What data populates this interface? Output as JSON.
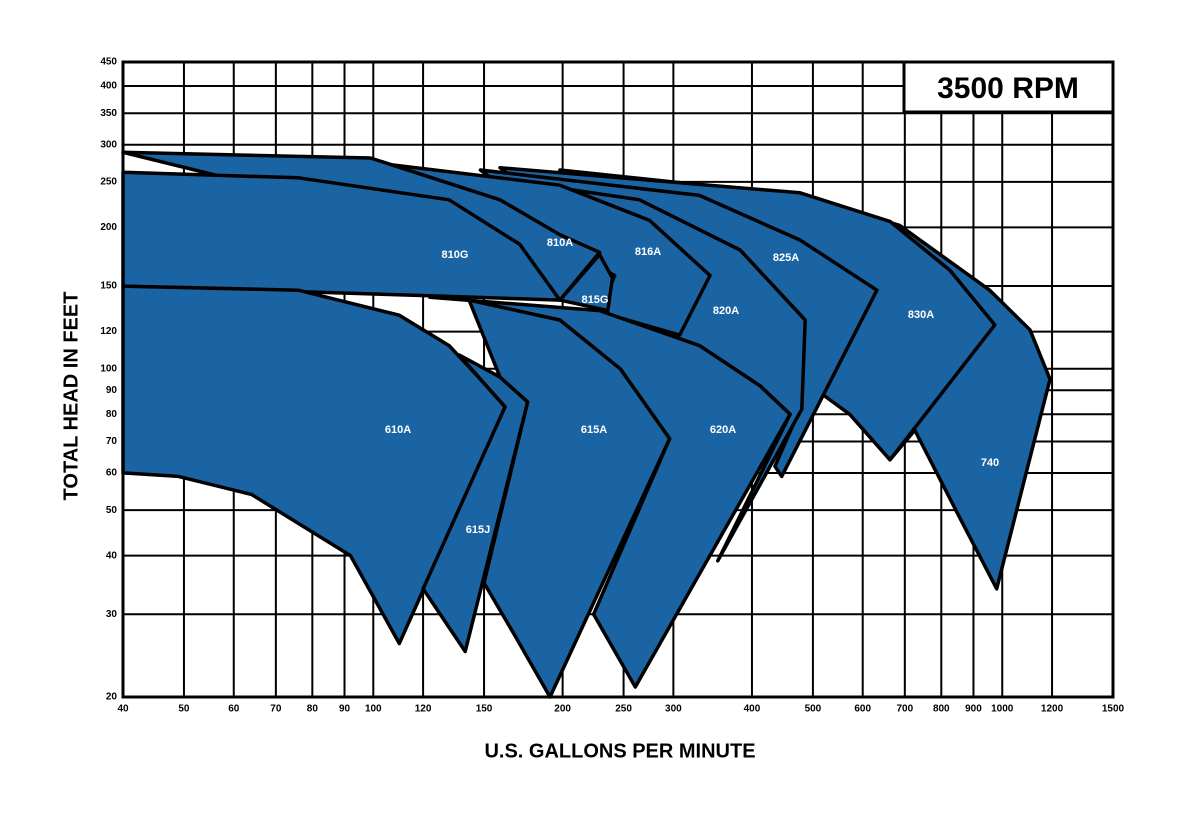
{
  "chart_data": {
    "type": "region",
    "title": "3500 RPM",
    "xlabel": "U.S. GALLONS PER MINUTE",
    "ylabel": "TOTAL HEAD IN FEET",
    "xscale": "log",
    "yscale": "log",
    "grid": true,
    "color": "#1b64a4",
    "xlim": [
      40,
      1500
    ],
    "ylim": [
      20,
      450
    ],
    "xticks": [
      40,
      50,
      60,
      70,
      80,
      90,
      100,
      120,
      150,
      200,
      250,
      300,
      400,
      500,
      600,
      700,
      800,
      900,
      1000,
      1200,
      1500
    ],
    "yticks": [
      20,
      30,
      40,
      50,
      60,
      70,
      80,
      90,
      100,
      120,
      150,
      200,
      250,
      300,
      350,
      400,
      450
    ],
    "regions": [
      {
        "name": "740",
        "gpm": [
          198,
          477,
          687,
          955,
          1107,
          1191,
          980,
          857,
          726,
          663,
          572,
          522,
          477
        ],
        "head": [
          265,
          234,
          202,
          147,
          121,
          95,
          34,
          48,
          74,
          64,
          82,
          89,
          86
        ]
      },
      {
        "name": "830A",
        "gpm": [
          159,
          477,
          663,
          826,
          973,
          663,
          572,
          513,
          477
        ],
        "head": [
          268,
          237,
          206,
          162,
          124,
          64,
          80,
          89,
          88
        ]
      },
      {
        "name": "825A",
        "gpm": [
          148,
          330,
          477,
          632,
          446,
          435,
          477,
          356
        ],
        "head": [
          265,
          234,
          188,
          147,
          59,
          62,
          82,
          110
        ]
      },
      {
        "name": "820A",
        "gpm": [
          142,
          265,
          383,
          486,
          480,
          353,
          460,
          412,
          330,
          229,
          229
        ],
        "head": [
          259,
          229,
          179,
          127,
          82,
          39,
          80,
          92,
          112,
          133,
          140
        ]
      },
      {
        "name": "816A",
        "gpm": [
          102,
          198,
          275,
          343,
          307,
          229,
          242,
          221
        ],
        "head": [
          274,
          246,
          207,
          158,
          118,
          132,
          158,
          169
        ]
      },
      {
        "name": "815G",
        "gpm": [
          198,
          229,
          240,
          236
        ],
        "head": [
          140,
          175,
          156,
          133
        ]
      },
      {
        "name": "810A",
        "gpm": [
          40,
          99,
          159,
          198,
          229,
          198,
          171
        ],
        "head": [
          289,
          281,
          229,
          193,
          177,
          140,
          179
        ]
      },
      {
        "name": "810G",
        "gpm": [
          40,
          76,
          132,
          171,
          198,
          123,
          40
        ],
        "head": [
          262,
          255,
          229,
          184,
          140,
          143,
          150
        ]
      },
      {
        "name": "610A",
        "gpm": [
          40,
          76,
          110,
          132,
          148,
          162,
          110,
          92,
          64,
          49,
          40
        ],
        "head": [
          150,
          147,
          130,
          112,
          95,
          83,
          26,
          40,
          54,
          59,
          60
        ]
      },
      {
        "name": "615J",
        "gpm": [
          137,
          159,
          176,
          140,
          120,
          162,
          148
        ],
        "head": [
          107,
          96,
          85,
          25,
          34,
          83,
          95
        ]
      },
      {
        "name": "615A",
        "gpm": [
          142,
          198,
          247,
          296,
          191,
          168,
          150,
          176,
          159
        ],
        "head": [
          140,
          127,
          100,
          71,
          20,
          27,
          35,
          85,
          96
        ]
      },
      {
        "name": "620A",
        "gpm": [
          123,
          229,
          330,
          412,
          460,
          261,
          224,
          296,
          247,
          198,
          142
        ],
        "head": [
          142,
          133,
          112,
          92,
          80,
          21,
          30,
          71,
          100,
          127,
          140
        ]
      }
    ]
  }
}
